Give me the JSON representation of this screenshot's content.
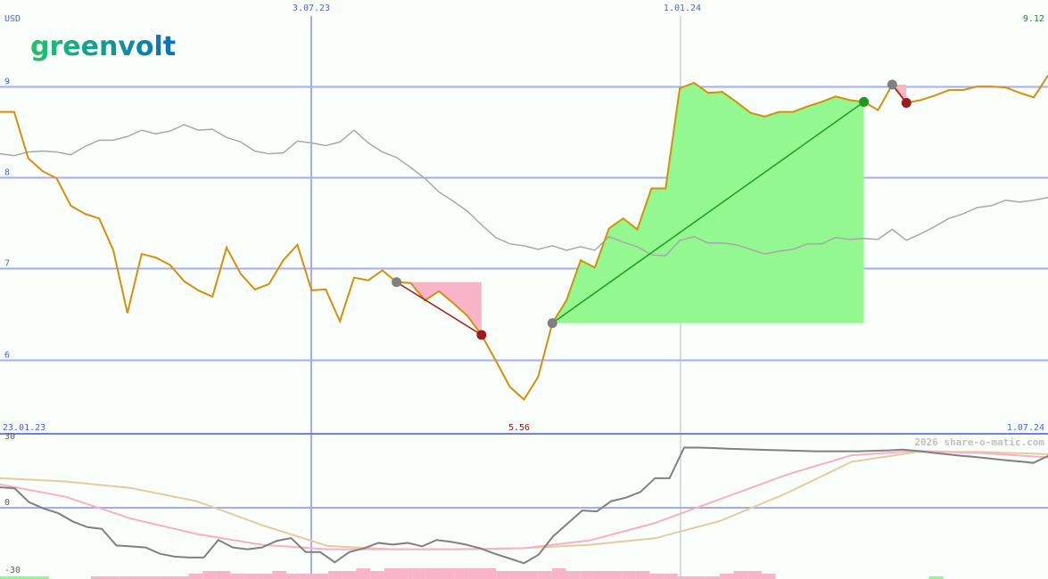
{
  "logo": {
    "text": "greenvolt",
    "colors": [
      "#1fc46a",
      "#0a6fc0"
    ]
  },
  "currency_label": "USD",
  "watermark": "2026 share-o-matic.com",
  "colors": {
    "grid": "#a4acf2",
    "axis_text": "#5060e8",
    "price": "#d4900c",
    "benchmark": "#a8a8a8",
    "loss_fill": "#f9b4c8",
    "win_fill": "#94f890",
    "loss_line": "#9a1c1c",
    "win_line": "#1e9a1e",
    "last_price": "#1a8a1a",
    "low_price": "#8b1010",
    "osc": "#808080",
    "osc_fast": "#f8b0c4",
    "osc_slow": "#e4cca0"
  },
  "chart_data": [
    {
      "type": "line",
      "ylabel": "USD",
      "ylim": [
        5.35,
        9.95
      ],
      "yticks": [
        "9",
        "8",
        "7",
        "6"
      ],
      "ytick_values": [
        9,
        8,
        7,
        6
      ],
      "x_tick_labels_top": [
        "3.07.23",
        "1.01.24"
      ],
      "last_price_label": "9.12",
      "start_date": "23.01.23",
      "end_date": "1.07.24",
      "low_label": "5.56",
      "grid": true,
      "series": [
        {
          "values": [
            8.72,
            8.72,
            8.21,
            8.07,
            7.99,
            7.69,
            7.6,
            7.55,
            7.2,
            6.51,
            7.16,
            7.12,
            7.04,
            6.86,
            6.76,
            6.69,
            7.23,
            6.94,
            6.77,
            6.83,
            7.09,
            7.26,
            6.76,
            6.77,
            6.42,
            6.9,
            6.87,
            6.98,
            6.85,
            6.84,
            6.65,
            6.75,
            6.62,
            6.48,
            6.27,
            5.99,
            5.7,
            5.56,
            5.81,
            6.4,
            6.65,
            7.09,
            7.01,
            7.44,
            7.55,
            7.43,
            7.88,
            7.88,
            8.98,
            9.04,
            8.93,
            8.94,
            8.83,
            8.71,
            8.67,
            8.72,
            8.72,
            8.78,
            8.83,
            8.89,
            8.85,
            8.83,
            8.74,
            9.02,
            8.82,
            8.85,
            8.9,
            8.96,
            8.96,
            9.0,
            9.0,
            8.99,
            8.93,
            8.88,
            9.12
          ]
        },
        {
          "values": [
            8.26,
            8.24,
            8.28,
            8.29,
            8.28,
            8.25,
            8.34,
            8.41,
            8.41,
            8.45,
            8.52,
            8.48,
            8.51,
            8.58,
            8.52,
            8.53,
            8.44,
            8.39,
            8.29,
            8.26,
            8.27,
            8.4,
            8.38,
            8.35,
            8.39,
            8.52,
            8.38,
            8.28,
            8.22,
            8.11,
            7.99,
            7.84,
            7.74,
            7.63,
            7.48,
            7.34,
            7.27,
            7.25,
            7.21,
            7.25,
            7.2,
            7.24,
            7.2,
            7.35,
            7.29,
            7.24,
            7.15,
            7.14,
            7.31,
            7.35,
            7.28,
            7.28,
            7.26,
            7.21,
            7.16,
            7.19,
            7.21,
            7.27,
            7.27,
            7.34,
            7.32,
            7.33,
            7.32,
            7.43,
            7.31,
            7.38,
            7.46,
            7.55,
            7.6,
            7.67,
            7.69,
            7.75,
            7.73,
            7.75,
            7.78
          ]
        }
      ],
      "trades": [
        {
          "entry_index": 28,
          "exit_index": 34,
          "entry_price": 6.85,
          "exit_price": 6.27,
          "result": "loss"
        },
        {
          "entry_index": 39,
          "exit_index": 61,
          "entry_price": 6.4,
          "exit_price": 8.83,
          "result": "win"
        },
        {
          "entry_index": 63,
          "exit_index": 64,
          "entry_price": 9.02,
          "exit_price": 8.82,
          "result": "loss"
        }
      ]
    },
    {
      "type": "line",
      "ylim": [
        -31,
        33
      ],
      "yticks": [
        "30",
        "0",
        "-30"
      ],
      "ytick_values": [
        30,
        0,
        -30
      ],
      "grid": true,
      "series": [
        {
          "values": [
            9.3,
            8.9,
            2.5,
            -0.4,
            -2.5,
            -6.3,
            -8.9,
            -9.7,
            -17.3,
            -17.7,
            -18.2,
            -21.1,
            -22.4,
            -22.8,
            -22.8,
            -14.8,
            -18.2,
            -19.0,
            -18.2,
            -15.2,
            -13.9,
            -20.3,
            -20.3,
            -25.0,
            -20.3,
            -18.6,
            -16.1,
            -16.9,
            -16.1,
            -17.7,
            -14.8,
            -15.6,
            -16.9,
            -18.6,
            -21.1,
            -23.2,
            -25.4,
            -21.5,
            -13.1,
            -7.2,
            -1.3,
            -1.7,
            3.0,
            4.6,
            7.2,
            13.5,
            13.5,
            27.5,
            27.5,
            27.3,
            27.0,
            26.8,
            26.6,
            26.4,
            26.2,
            26.0,
            25.8,
            25.8,
            25.8,
            25.8,
            26.0,
            26.2,
            26.6,
            26.0,
            25.2,
            24.5,
            23.8,
            23.2,
            22.5,
            21.8,
            21.2,
            20.5,
            23.7
          ]
        },
        {
          "values": [
            10.7,
            5,
            -5,
            -12,
            -17,
            -19,
            -19,
            -19,
            -18.5,
            -15,
            -7,
            4,
            15,
            24,
            26,
            25,
            23
          ]
        },
        {
          "values": [
            13.5,
            12,
            9,
            3,
            -8,
            -17.5,
            -19,
            -19,
            -18.5,
            -17,
            -14,
            -6,
            6.5,
            21,
            25.5,
            25.5,
            24.5
          ]
        }
      ],
      "histogram": [
        1,
        1,
        1,
        1,
        0,
        0,
        0,
        -1,
        -1,
        -1,
        -1,
        -1,
        -1,
        -1,
        -2,
        -3,
        -3,
        -2,
        -2,
        -2,
        -3,
        -2,
        -2,
        -2,
        -3,
        -3,
        -4,
        -3,
        -4,
        -4,
        -4,
        -4,
        -4,
        -4,
        -4,
        -4,
        -3,
        -3,
        -3,
        -3,
        -4,
        -3,
        -3,
        -3,
        -3,
        -3,
        -3,
        -2,
        -2,
        -1,
        -1,
        -1,
        -2,
        -3,
        -3,
        -2,
        0,
        0,
        0,
        0,
        0,
        0,
        0,
        0,
        0,
        0,
        0,
        1,
        0,
        0,
        0,
        0,
        0,
        0,
        0,
        0
      ]
    }
  ]
}
